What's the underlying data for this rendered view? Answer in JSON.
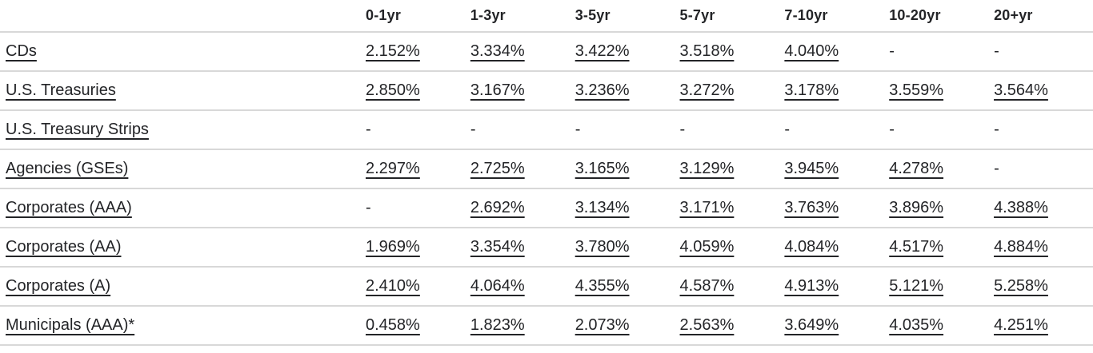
{
  "table": {
    "columns": [
      "0-1yr",
      "1-3yr",
      "3-5yr",
      "5-7yr",
      "7-10yr",
      "10-20yr",
      "20+yr"
    ],
    "rows": [
      {
        "label": "CDs",
        "values": [
          "2.152%",
          "3.334%",
          "3.422%",
          "3.518%",
          "4.040%",
          "-",
          "-"
        ]
      },
      {
        "label": "U.S. Treasuries",
        "values": [
          "2.850%",
          "3.167%",
          "3.236%",
          "3.272%",
          "3.178%",
          "3.559%",
          "3.564%"
        ]
      },
      {
        "label": "U.S. Treasury Strips",
        "values": [
          "-",
          "-",
          "-",
          "-",
          "-",
          "-",
          "-"
        ]
      },
      {
        "label": "Agencies (GSEs)",
        "values": [
          "2.297%",
          "2.725%",
          "3.165%",
          "3.129%",
          "3.945%",
          "4.278%",
          "-"
        ]
      },
      {
        "label": "Corporates (AAA)",
        "values": [
          "-",
          "2.692%",
          "3.134%",
          "3.171%",
          "3.763%",
          "3.896%",
          "4.388%"
        ]
      },
      {
        "label": "Corporates (AA)",
        "values": [
          "1.969%",
          "3.354%",
          "3.780%",
          "4.059%",
          "4.084%",
          "4.517%",
          "4.884%"
        ]
      },
      {
        "label": "Corporates (A)",
        "values": [
          "2.410%",
          "4.064%",
          "4.355%",
          "4.587%",
          "4.913%",
          "5.121%",
          "5.258%"
        ]
      },
      {
        "label": "Municipals (AAA)*",
        "values": [
          "0.458%",
          "1.823%",
          "2.073%",
          "2.563%",
          "3.649%",
          "4.035%",
          "4.251%"
        ]
      }
    ],
    "empty_value": "-",
    "colors": {
      "text": "#232427",
      "divider": "#d8d8d8"
    }
  }
}
